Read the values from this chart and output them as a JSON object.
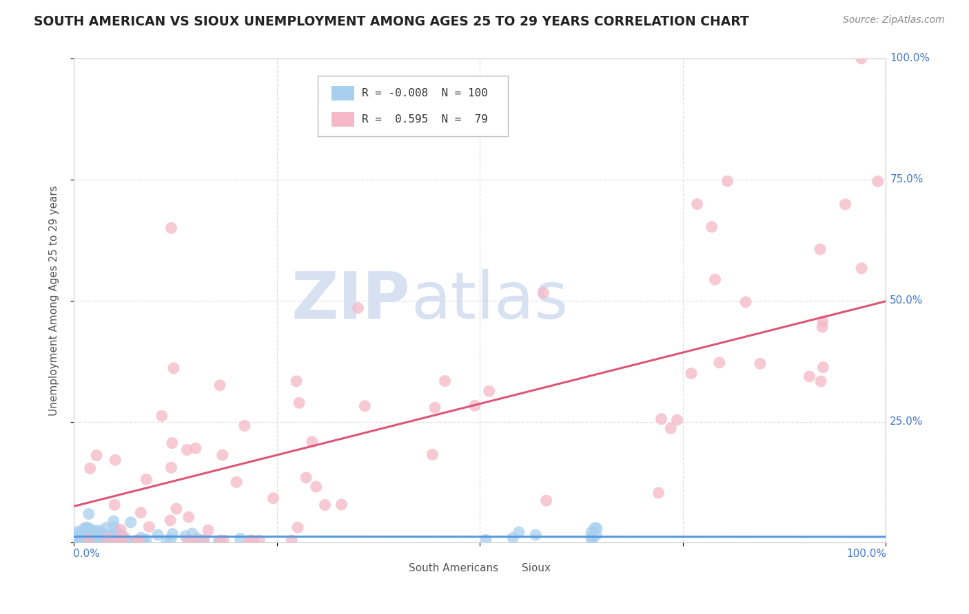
{
  "title": "SOUTH AMERICAN VS SIOUX UNEMPLOYMENT AMONG AGES 25 TO 29 YEARS CORRELATION CHART",
  "source": "Source: ZipAtlas.com",
  "ylabel": "Unemployment Among Ages 25 to 29 years",
  "series1_name": "South Americans",
  "series1_color": "#A8CFEE",
  "series1_R": -0.008,
  "series1_N": 100,
  "series2_name": "Sioux",
  "series2_color": "#F5B8C8",
  "series2_R": 0.595,
  "series2_N": 79,
  "trend1_color": "#5599DD",
  "trend2_color": "#DD5577",
  "watermark_text": "ZIP",
  "watermark_text2": "atlas",
  "background_color": "#FFFFFF",
  "grid_color": "#E0E0E0",
  "title_color": "#222222",
  "source_color": "#888888",
  "axis_label_color": "#4477CC",
  "ylabel_color": "#555555"
}
